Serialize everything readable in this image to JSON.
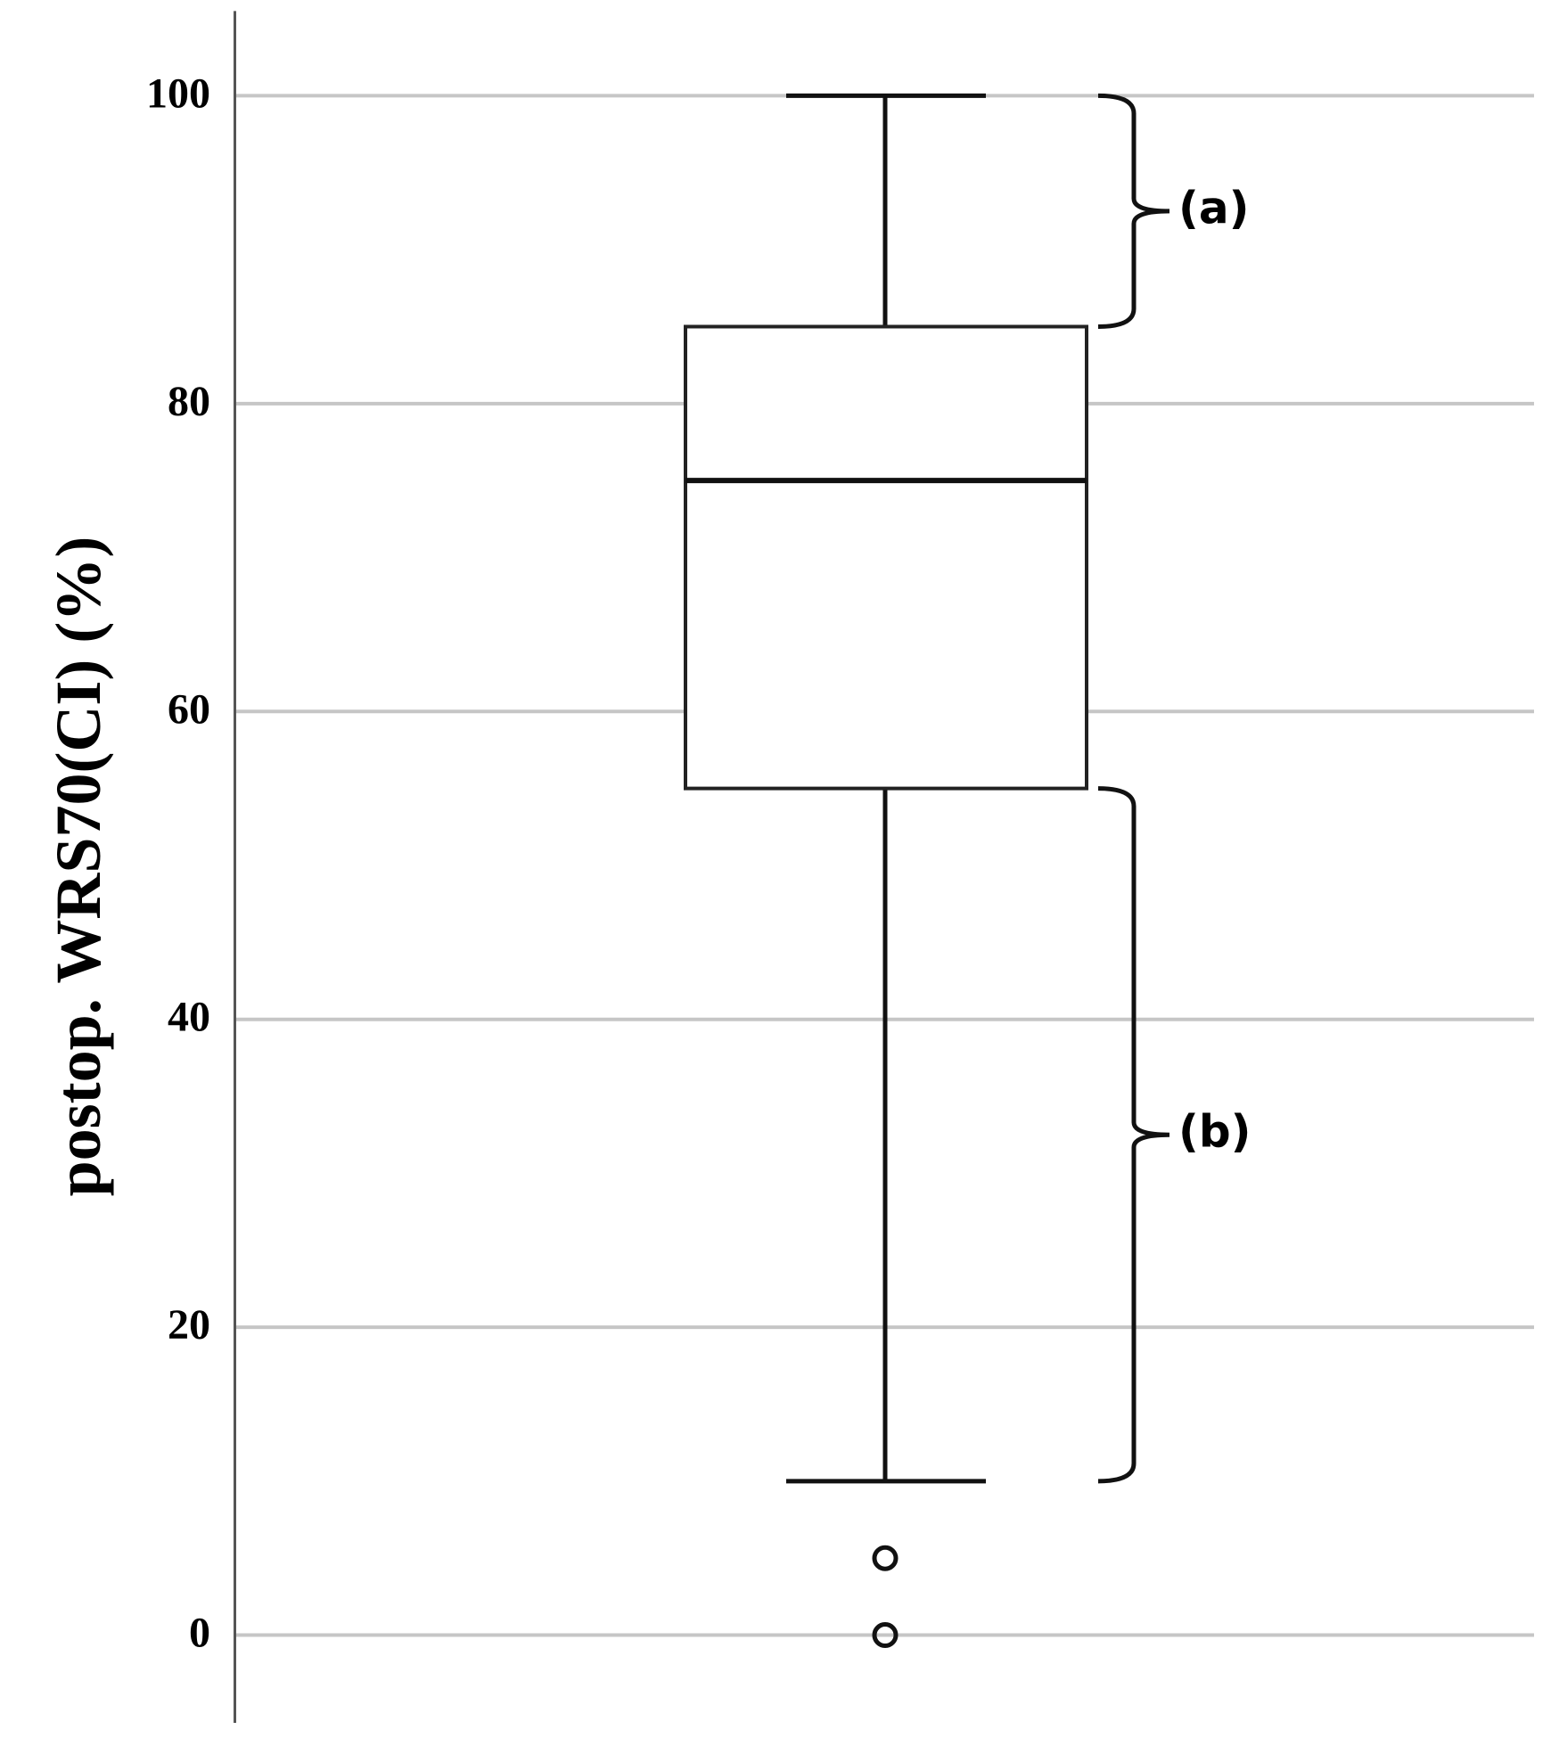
{
  "chart_data": {
    "type": "box",
    "ylabel": "postop. WRS70(CI) (%)",
    "ylim": [
      -5.7,
      105.5
    ],
    "yticks": [
      0,
      20,
      40,
      60,
      80,
      100
    ],
    "grid": true,
    "box": {
      "whisker_low": 10,
      "q1": 55,
      "median": 75,
      "q3": 85,
      "whisker_high": 100,
      "outliers": [
        5,
        0
      ]
    },
    "annotations": [
      "(a)",
      "(b)"
    ]
  }
}
